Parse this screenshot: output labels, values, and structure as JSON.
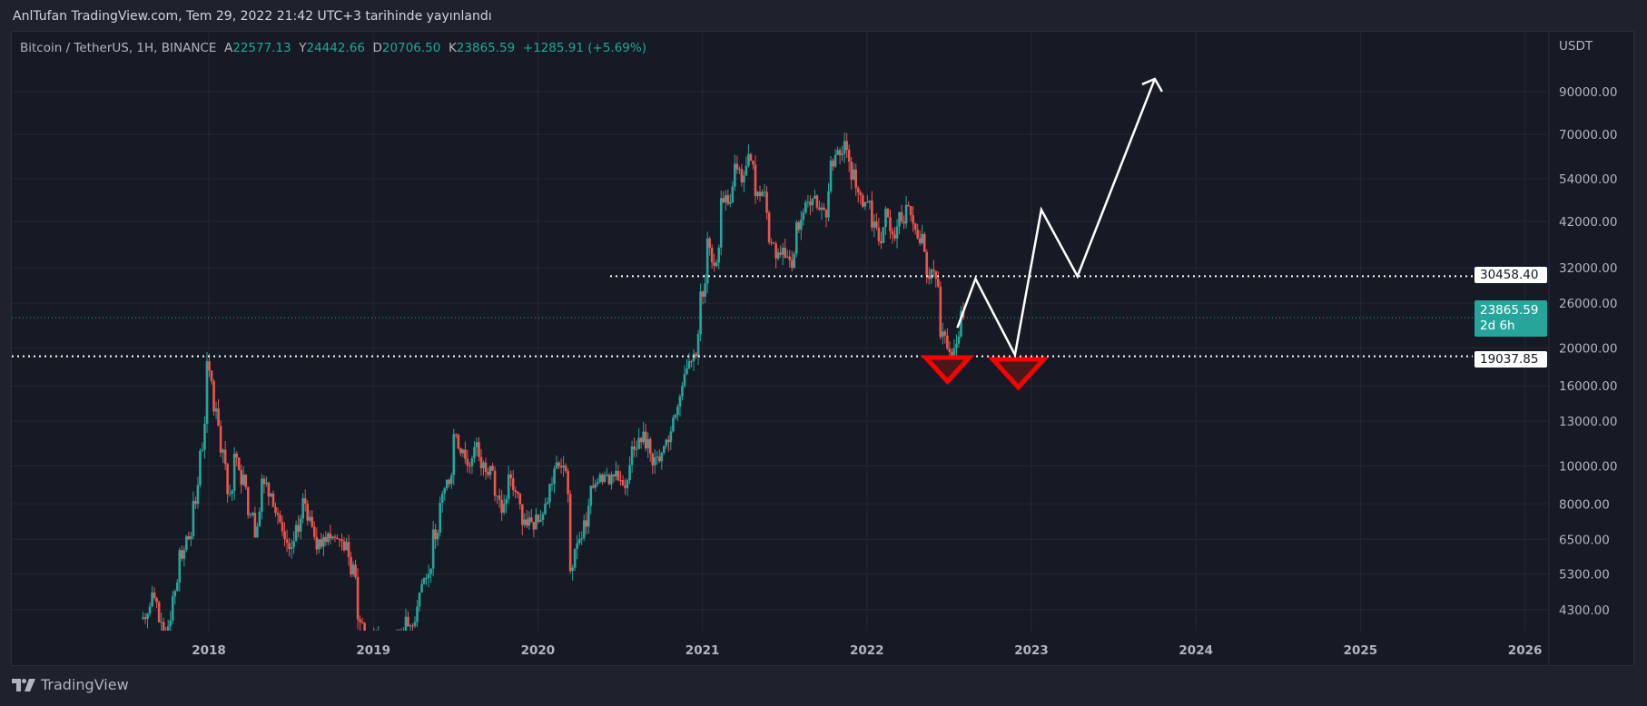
{
  "header": {
    "published": "AnlTufan TradingView.com, Tem 29, 2022 21:42 UTC+3 tarihinde yayınlandı"
  },
  "legend": {
    "symbol": "Bitcoin / TetherUS, 1H, BINANCE",
    "open_label": "A",
    "open": "22577.13",
    "high_label": "Y",
    "high": "24442.66",
    "low_label": "D",
    "low": "20706.50",
    "close_label": "K",
    "close": "23865.59",
    "change": "+1285.91 (+5.69%)"
  },
  "price_axis": {
    "currency": "USDT",
    "ticks": [
      "90000.00",
      "70000.00",
      "54000.00",
      "42000.00",
      "32000.00",
      "26000.00",
      "20000.00",
      "16000.00",
      "13000.00",
      "10000.00",
      "8000.00",
      "6500.00",
      "5300.00",
      "4300.00"
    ],
    "resistance_label": "30458.40",
    "current_price_label": "23865.59",
    "countdown": "2d 6h",
    "support_label": "19037.85"
  },
  "time_axis": {
    "ticks": [
      "2018",
      "2019",
      "2020",
      "2021",
      "2022",
      "2023",
      "2024",
      "2025",
      "2026"
    ]
  },
  "footer": {
    "brand": "TradingView"
  },
  "colors": {
    "up": "#26a69a",
    "down": "#ef5350",
    "background": "#161a25",
    "marker": "#ff0000"
  },
  "chart_data": {
    "type": "candlestick",
    "scale": "log",
    "ylim": [
      3800,
      105000
    ],
    "xlim": [
      2017.5,
      2026.3
    ],
    "start": 2017.6,
    "step_years": 0.041667,
    "closes": [
      4200,
      4600,
      4000,
      3900,
      4800,
      5800,
      6500,
      8000,
      11000,
      17500,
      14000,
      11000,
      8500,
      10500,
      9500,
      7500,
      7000,
      9000,
      8500,
      7500,
      6500,
      6200,
      6800,
      8000,
      7000,
      6500,
      6400,
      6600,
      6500,
      6400,
      5600,
      4000,
      3500,
      3700,
      3600,
      3500,
      3600,
      3800,
      3900,
      4000,
      5000,
      5300,
      6500,
      8500,
      9000,
      12000,
      11000,
      10000,
      11500,
      10200,
      10000,
      8400,
      8000,
      9300,
      8500,
      7300,
      7200,
      7200,
      8000,
      9000,
      10000,
      9700,
      5500,
      6500,
      7000,
      8800,
      9500,
      9500,
      9400,
      9200,
      9200,
      11000,
      11500,
      11700,
      10500,
      10800,
      11500,
      13500,
      16000,
      18500,
      19000,
      27000,
      36000,
      33000,
      47000,
      47000,
      57000,
      55000,
      60000,
      50000,
      50000,
      37000,
      35000,
      34000,
      32000,
      40000,
      47000,
      48000,
      45000,
      43000,
      58000,
      62000,
      64000,
      57000,
      49000,
      47000,
      42000,
      37000,
      43000,
      38000,
      42000,
      46000,
      40000,
      39000,
      30000,
      30000,
      22000,
      19500,
      20500,
      23865.59
    ],
    "horizontal_lines": [
      30458.4,
      19037.85
    ],
    "current_price": 23865.59,
    "projection_path": [
      [
        2022.55,
        22500
      ],
      [
        2022.66,
        30000
      ],
      [
        2022.9,
        19200
      ],
      [
        2023.06,
        45000
      ],
      [
        2023.28,
        30458
      ],
      [
        2023.75,
        97000
      ]
    ],
    "markers": [
      {
        "type": "down-triangle",
        "t": 2022.49,
        "price": 18500
      },
      {
        "type": "down-triangle",
        "t": 2022.92,
        "price": 18300
      }
    ]
  }
}
